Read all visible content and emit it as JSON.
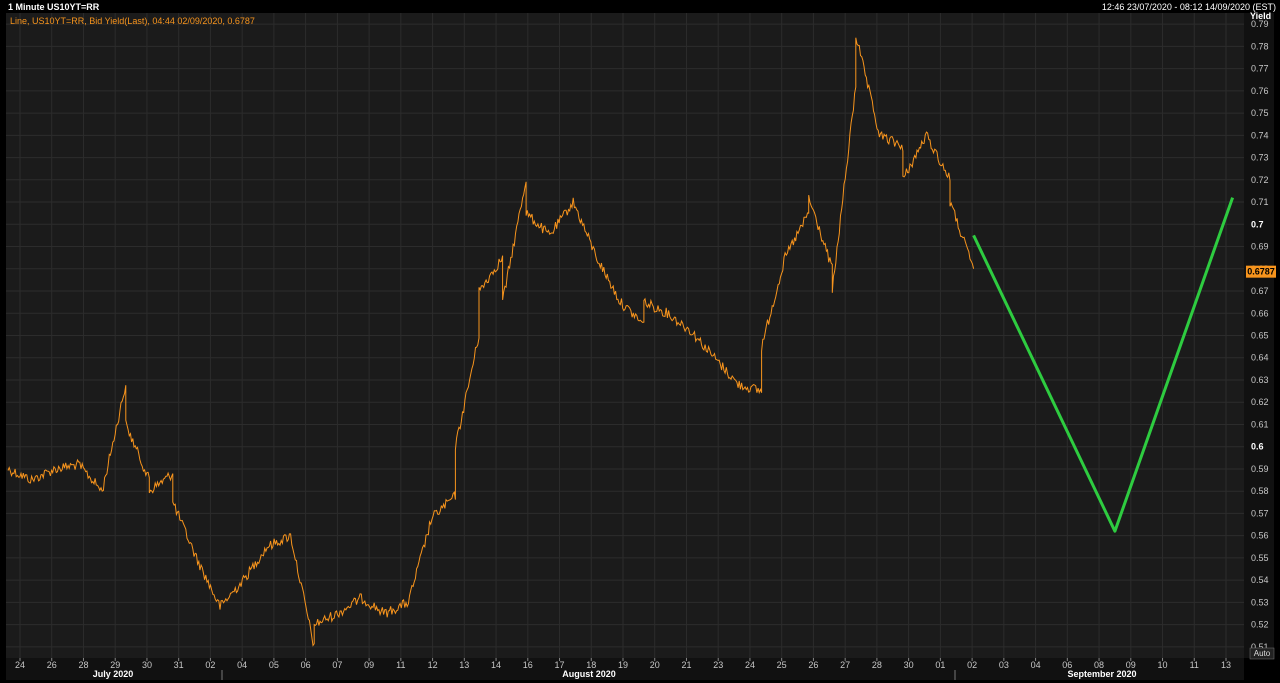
{
  "header": {
    "title": "1 Minute US10YT=RR",
    "range": "12:46 23/07/2020 - 08:12 14/09/2020 (EST)"
  },
  "legend": {
    "text": "Line, US10YT=RR, Bid Yield(Last), 04:44 02/09/2020, 0.6787"
  },
  "chart_data": {
    "type": "line",
    "title": "1 Minute US10YT=RR",
    "ylabel": "Yield",
    "ylim": [
      0.505,
      0.795
    ],
    "y_ticks": [
      0.51,
      0.52,
      0.53,
      0.54,
      0.55,
      0.56,
      0.57,
      0.58,
      0.59,
      0.6,
      0.61,
      0.62,
      0.63,
      0.64,
      0.65,
      0.66,
      0.67,
      0.68,
      0.69,
      0.7,
      0.71,
      0.72,
      0.73,
      0.74,
      0.75,
      0.76,
      0.77,
      0.78,
      0.79
    ],
    "y_tick_labels": [
      "0.51",
      "0.52",
      "0.53",
      "0.54",
      "0.55",
      "0.56",
      "0.57",
      "0.58",
      "0.59",
      "0.6",
      "0.61",
      "0.62",
      "0.63",
      "0.64",
      "0.65",
      "0.66",
      "0.67",
      "0.68",
      "0.69",
      "0.7",
      "0.71",
      "0.72",
      "0.73",
      "0.74",
      "0.75",
      "0.76",
      "0.77",
      "0.78",
      "0.79"
    ],
    "x_ticks": [
      "24",
      "26",
      "28",
      "29",
      "30",
      "31",
      "02",
      "04",
      "05",
      "06",
      "07",
      "09",
      "11",
      "12",
      "13",
      "14",
      "16",
      "17",
      "18",
      "19",
      "20",
      "21",
      "23",
      "24",
      "25",
      "26",
      "27",
      "28",
      "30",
      "01",
      "02",
      "03",
      "04",
      "06",
      "08",
      "09",
      "10",
      "11",
      "13"
    ],
    "months": [
      "July 2020",
      "August 2020",
      "September 2020"
    ],
    "last_value": "0.6787",
    "grid": true,
    "auto_label": "Auto",
    "series": [
      {
        "color": "#f7941d",
        "x": [
          "2020-07-23",
          "2020-07-24",
          "2020-07-25",
          "2020-07-26",
          "2020-07-27",
          "2020-07-28",
          "2020-07-28",
          "2020-07-29",
          "2020-07-29",
          "2020-07-30",
          "2020-07-30",
          "2020-07-31",
          "2020-08-01",
          "2020-08-02",
          "2020-08-03",
          "2020-08-04",
          "2020-08-05",
          "2020-08-05",
          "2020-08-06",
          "2020-08-07",
          "2020-08-08",
          "2020-08-09",
          "2020-08-10",
          "2020-08-11",
          "2020-08-11",
          "2020-08-12",
          "2020-08-12",
          "2020-08-13",
          "2020-08-13",
          "2020-08-14",
          "2020-08-14",
          "2020-08-15",
          "2020-08-16",
          "2020-08-17",
          "2020-08-18",
          "2020-08-19",
          "2020-08-19",
          "2020-08-20",
          "2020-08-21",
          "2020-08-22",
          "2020-08-23",
          "2020-08-24",
          "2020-08-24",
          "2020-08-25",
          "2020-08-26",
          "2020-08-26",
          "2020-08-27",
          "2020-08-27",
          "2020-08-28",
          "2020-08-28",
          "2020-08-29",
          "2020-08-30",
          "2020-08-30",
          "2020-08-31",
          "2020-09-01",
          "2020-09-01",
          "2020-09-02"
        ],
        "y": [
          0.59,
          0.585,
          0.59,
          0.592,
          0.58,
          0.628,
          0.61,
          0.585,
          0.58,
          0.588,
          0.575,
          0.55,
          0.528,
          0.54,
          0.555,
          0.56,
          0.51,
          0.52,
          0.525,
          0.532,
          0.525,
          0.53,
          0.568,
          0.578,
          0.6,
          0.65,
          0.67,
          0.685,
          0.665,
          0.72,
          0.705,
          0.695,
          0.71,
          0.685,
          0.665,
          0.655,
          0.665,
          0.66,
          0.652,
          0.64,
          0.628,
          0.625,
          0.645,
          0.685,
          0.705,
          0.712,
          0.68,
          0.67,
          0.762,
          0.785,
          0.74,
          0.735,
          0.72,
          0.74,
          0.72,
          0.71,
          0.68
        ]
      },
      {
        "color": "#2ecc40",
        "x": [
          "2020-09-02",
          "2020-09-08",
          "2020-09-13"
        ],
        "y": [
          0.695,
          0.562,
          0.712
        ]
      }
    ]
  }
}
